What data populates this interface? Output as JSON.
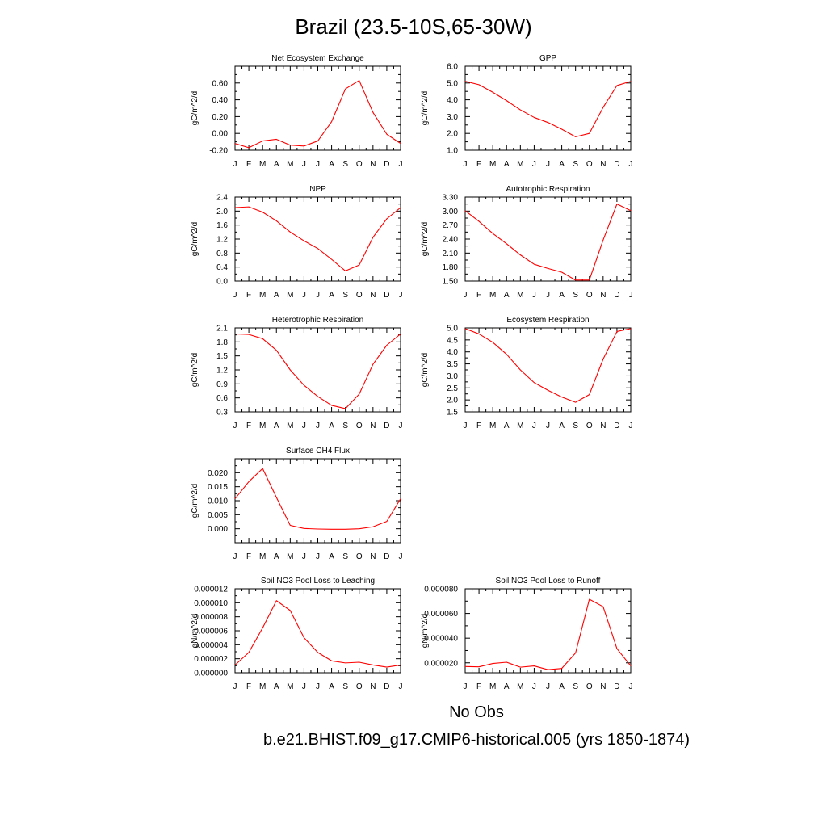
{
  "page": {
    "title": "Brazil (23.5-10S,65-30W)"
  },
  "legend": {
    "obs_label": "No Obs",
    "obs_color": "#8a8ae6",
    "case_label": "b.e21.BHIST.f09_g17.CMIP6-historical.005 (yrs 1850-1874)",
    "case_color": "#f08080"
  },
  "chart_data": [
    {
      "type": "line",
      "title": "Net Ecosystem Exchange",
      "ylabel": "gC/m^2/d",
      "categories": [
        "J",
        "F",
        "M",
        "A",
        "M",
        "J",
        "J",
        "A",
        "S",
        "O",
        "N",
        "D",
        "J"
      ],
      "ylim": [
        -0.2,
        0.8
      ],
      "yticks": [
        -0.2,
        0.0,
        0.2,
        0.4,
        0.6
      ],
      "ytick_labels": [
        "-0.20",
        "0.00",
        "0.20",
        "0.40",
        "0.60"
      ],
      "series": [
        {
          "color": "#ff0000",
          "values": [
            -0.12,
            -0.17,
            -0.09,
            -0.07,
            -0.14,
            -0.15,
            -0.09,
            0.14,
            0.53,
            0.63,
            0.25,
            -0.01,
            -0.12
          ]
        }
      ]
    },
    {
      "type": "line",
      "title": "GPP",
      "ylabel": "gC/m^2/d",
      "categories": [
        "J",
        "F",
        "M",
        "A",
        "M",
        "J",
        "J",
        "A",
        "S",
        "O",
        "N",
        "D",
        "J"
      ],
      "ylim": [
        1.0,
        6.0
      ],
      "yticks": [
        1.0,
        2.0,
        3.0,
        4.0,
        5.0,
        6.0
      ],
      "ytick_labels": [
        "1.0",
        "2.0",
        "3.0",
        "4.0",
        "5.0",
        "6.0"
      ],
      "series": [
        {
          "color": "#ff0000",
          "values": [
            5.1,
            4.9,
            4.45,
            3.95,
            3.4,
            2.95,
            2.65,
            2.25,
            1.8,
            2.0,
            3.55,
            4.85,
            5.1
          ]
        }
      ]
    },
    {
      "type": "line",
      "title": "NPP",
      "ylabel": "gC/m^2/d",
      "categories": [
        "J",
        "F",
        "M",
        "A",
        "M",
        "J",
        "J",
        "A",
        "S",
        "O",
        "N",
        "D",
        "J"
      ],
      "ylim": [
        0.0,
        2.4
      ],
      "yticks": [
        0.0,
        0.4,
        0.8,
        1.2,
        1.6,
        2.0,
        2.4
      ],
      "ytick_labels": [
        "0.0",
        "0.4",
        "0.8",
        "1.2",
        "1.6",
        "2.0",
        "2.4"
      ],
      "series": [
        {
          "color": "#ff0000",
          "values": [
            2.1,
            2.12,
            1.97,
            1.72,
            1.4,
            1.15,
            0.93,
            0.62,
            0.29,
            0.46,
            1.25,
            1.78,
            2.1
          ]
        }
      ]
    },
    {
      "type": "line",
      "title": "Autotrophic Respiration",
      "ylabel": "gC/m^2/d",
      "categories": [
        "J",
        "F",
        "M",
        "A",
        "M",
        "J",
        "J",
        "A",
        "S",
        "O",
        "N",
        "D",
        "J"
      ],
      "ylim": [
        1.5,
        3.3
      ],
      "yticks": [
        1.5,
        1.8,
        2.1,
        2.4,
        2.7,
        3.0,
        3.3
      ],
      "ytick_labels": [
        "1.50",
        "1.80",
        "2.10",
        "2.40",
        "2.70",
        "3.00",
        "3.30"
      ],
      "series": [
        {
          "color": "#ff0000",
          "values": [
            3.01,
            2.78,
            2.52,
            2.3,
            2.06,
            1.86,
            1.77,
            1.69,
            1.52,
            1.52,
            2.38,
            3.15,
            3.01
          ]
        }
      ]
    },
    {
      "type": "line",
      "title": "Heterotrophic Respiration",
      "ylabel": "gC/m^2/d",
      "categories": [
        "J",
        "F",
        "M",
        "A",
        "M",
        "J",
        "J",
        "A",
        "S",
        "O",
        "N",
        "D",
        "J"
      ],
      "ylim": [
        0.3,
        2.1
      ],
      "yticks": [
        0.3,
        0.6,
        0.9,
        1.2,
        1.5,
        1.8,
        2.1
      ],
      "ytick_labels": [
        "0.3",
        "0.6",
        "0.9",
        "1.2",
        "1.5",
        "1.8",
        "2.1"
      ],
      "series": [
        {
          "color": "#ff0000",
          "values": [
            1.97,
            1.96,
            1.87,
            1.62,
            1.2,
            0.87,
            0.63,
            0.44,
            0.37,
            0.68,
            1.32,
            1.73,
            1.97
          ]
        }
      ]
    },
    {
      "type": "line",
      "title": "Ecosystem Respiration",
      "ylabel": "gC/m^2/d",
      "categories": [
        "J",
        "F",
        "M",
        "A",
        "M",
        "J",
        "J",
        "A",
        "S",
        "O",
        "N",
        "D",
        "J"
      ],
      "ylim": [
        1.5,
        5.0
      ],
      "yticks": [
        1.5,
        2.0,
        2.5,
        3.0,
        3.5,
        4.0,
        4.5,
        5.0
      ],
      "ytick_labels": [
        "1.5",
        "2.0",
        "2.5",
        "3.0",
        "3.5",
        "4.0",
        "4.5",
        "5.0"
      ],
      "series": [
        {
          "color": "#ff0000",
          "values": [
            4.97,
            4.75,
            4.4,
            3.9,
            3.25,
            2.72,
            2.4,
            2.12,
            1.9,
            2.22,
            3.7,
            4.85,
            4.97
          ]
        }
      ]
    },
    {
      "type": "line",
      "title": "Surface CH4 Flux",
      "ylabel": "gC/m^2/d",
      "categories": [
        "J",
        "F",
        "M",
        "A",
        "M",
        "J",
        "J",
        "A",
        "S",
        "O",
        "N",
        "D",
        "J"
      ],
      "ylim": [
        -0.005,
        0.025
      ],
      "yticks": [
        0.0,
        0.005,
        0.01,
        0.015,
        0.02
      ],
      "ytick_labels": [
        "0.000",
        "0.005",
        "0.010",
        "0.015",
        "0.020"
      ],
      "series": [
        {
          "color": "#ff0000",
          "values": [
            0.0107,
            0.0168,
            0.0215,
            0.0112,
            0.0012,
            0.0001,
            -0.0001,
            -0.0002,
            -0.0002,
            0.0,
            0.0007,
            0.0026,
            0.0107
          ]
        }
      ]
    },
    {
      "type": "line",
      "title": "Soil NO3 Pool Loss to Leaching",
      "ylabel": "gN/m^2/d",
      "categories": [
        "J",
        "F",
        "M",
        "A",
        "M",
        "J",
        "J",
        "A",
        "S",
        "O",
        "N",
        "D",
        "J"
      ],
      "ylim": [
        0.0,
        1.2e-05
      ],
      "yticks": [
        0.0,
        2e-06,
        4e-06,
        6e-06,
        8e-06,
        1e-05,
        1.2e-05
      ],
      "ytick_labels": [
        "0.000000",
        "0.000002",
        "0.000004",
        "0.000006",
        "0.000008",
        "0.000010",
        "0.000012"
      ],
      "series": [
        {
          "color": "#ff0000",
          "values": [
            1.1e-06,
            2.9e-06,
            6.4e-06,
            1.03e-05,
            8.9e-06,
            5e-06,
            2.9e-06,
            1.7e-06,
            1.4e-06,
            1.5e-06,
            1.1e-06,
            8e-07,
            1.1e-06
          ]
        }
      ]
    },
    {
      "type": "line",
      "title": "Soil NO3 Pool Loss to Runoff",
      "ylabel": "gN/m^2/d",
      "categories": [
        "J",
        "F",
        "M",
        "A",
        "M",
        "J",
        "J",
        "A",
        "S",
        "O",
        "N",
        "D",
        "J"
      ],
      "ylim": [
        1.2e-05,
        8e-05
      ],
      "yticks": [
        2e-05,
        4e-05,
        6e-05,
        8e-05
      ],
      "ytick_labels": [
        "0.000020",
        "0.000040",
        "0.000060",
        "0.000080"
      ],
      "series": [
        {
          "color": "#ff0000",
          "values": [
            1.7e-05,
            1.68e-05,
            1.95e-05,
            2.05e-05,
            1.65e-05,
            1.75e-05,
            1.45e-05,
            1.55e-05,
            2.8e-05,
            7.15e-05,
            6.55e-05,
            3.15e-05,
            1.75e-05
          ]
        }
      ]
    }
  ]
}
